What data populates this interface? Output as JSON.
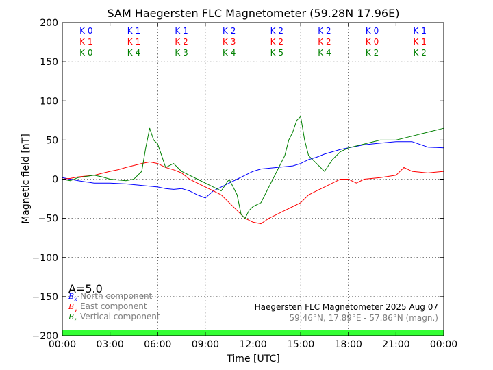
{
  "chart_data": {
    "type": "line",
    "title": "SAM Haegersten FLC Magnetometer (59.28N 17.96E)",
    "xlabel": "Time [UTC]",
    "ylabel": "Magnetic field [nT]",
    "xlim": [
      0,
      24
    ],
    "ylim": [
      -200,
      200
    ],
    "x_ticks": [
      "00:00",
      "03:00",
      "06:00",
      "09:00",
      "12:00",
      "15:00",
      "18:00",
      "21:00",
      "00:00"
    ],
    "y_ticks": [
      "200",
      "150",
      "100",
      "50",
      "0",
      "−50",
      "−100",
      "−150",
      "−200"
    ],
    "grid": true,
    "k_index_rows": [
      {
        "color": "#0000ff",
        "labels": [
          "K 0",
          "K 1",
          "K 1",
          "K 2",
          "K 2",
          "K 2",
          "K 0",
          "K 1"
        ]
      },
      {
        "color": "#ff0000",
        "labels": [
          "K 1",
          "K 1",
          "K 2",
          "K 3",
          "K 2",
          "K 2",
          "K 0",
          "K 1"
        ]
      },
      {
        "color": "#008000",
        "labels": [
          "K 0",
          "K 4",
          "K 3",
          "K 4",
          "K 5",
          "K 4",
          "K 2",
          "K 2"
        ]
      }
    ],
    "a_index": "A=5.0",
    "legend": {
      "placement": "bottom-left",
      "entries": [
        {
          "symbol": "B",
          "sub": "x",
          "label": "North component",
          "color": "#0000ff"
        },
        {
          "symbol": "B",
          "sub": "y",
          "label": "East component",
          "color": "#ff0000"
        },
        {
          "symbol": "B",
          "sub": "z",
          "label": "Vertical component",
          "color": "#008000"
        }
      ]
    },
    "station_label": "Haegersten FLC Magnetometer 2025 Aug 07",
    "coords_label": "59.46°N, 17.89°E - 57.86°N (magn.)",
    "quality_bar_color": "#33ff33",
    "series": [
      {
        "color": "#0000ff",
        "x": [
          0,
          0.5,
          1,
          2,
          3,
          4,
          5,
          6,
          6.5,
          7,
          7.5,
          8,
          8.5,
          9,
          9.5,
          10,
          10.5,
          11,
          11.5,
          12,
          12.5,
          13,
          13.5,
          14,
          14.5,
          15,
          15.5,
          16,
          16.5,
          17,
          17.5,
          18,
          19,
          20,
          21,
          22,
          23,
          24
        ],
        "y": [
          2,
          0,
          -2,
          -5,
          -5,
          -6,
          -8,
          -10,
          -12,
          -13,
          -12,
          -15,
          -20,
          -24,
          -15,
          -10,
          -5,
          0,
          5,
          10,
          13,
          14,
          15,
          16,
          17,
          20,
          25,
          28,
          32,
          35,
          38,
          40,
          44,
          46,
          48,
          48,
          41,
          40
        ]
      },
      {
        "color": "#ff0000",
        "x": [
          0,
          0.5,
          1,
          2,
          3,
          3.5,
          4,
          5,
          5.5,
          6,
          6.5,
          7,
          7.5,
          8,
          8.5,
          9,
          9.5,
          10,
          10.5,
          11,
          11.5,
          12,
          12.5,
          13,
          13.5,
          14,
          14.5,
          15,
          15.5,
          16,
          16.5,
          17,
          17.5,
          18,
          18.5,
          19,
          20,
          21,
          21.5,
          22,
          23,
          24
        ],
        "y": [
          0,
          1,
          3,
          5,
          10,
          12,
          15,
          20,
          22,
          20,
          15,
          12,
          8,
          0,
          -5,
          -10,
          -15,
          -20,
          -30,
          -40,
          -50,
          -55,
          -57,
          -50,
          -45,
          -40,
          -35,
          -30,
          -20,
          -15,
          -10,
          -5,
          0,
          0,
          -5,
          0,
          2,
          5,
          15,
          10,
          8,
          10
        ]
      },
      {
        "color": "#008000",
        "x": [
          0,
          0.5,
          1,
          2,
          2.5,
          3,
          4,
          4.5,
          5,
          5.25,
          5.5,
          5.75,
          6,
          6.25,
          6.5,
          7,
          7.5,
          8,
          8.5,
          9,
          9.5,
          10,
          10.5,
          11,
          11.25,
          11.5,
          11.75,
          12,
          12.5,
          13,
          13.5,
          14,
          14.25,
          14.5,
          14.75,
          15,
          15.25,
          15.5,
          16,
          16.5,
          17,
          17.5,
          18,
          19,
          20,
          21,
          22,
          23,
          24
        ],
        "y": [
          0,
          -2,
          2,
          5,
          3,
          0,
          -2,
          0,
          10,
          40,
          65,
          50,
          45,
          30,
          15,
          20,
          10,
          5,
          0,
          -5,
          -10,
          -15,
          0,
          -20,
          -45,
          -50,
          -40,
          -35,
          -30,
          -10,
          10,
          30,
          50,
          60,
          75,
          80,
          50,
          30,
          20,
          10,
          25,
          35,
          40,
          45,
          50,
          50,
          55,
          60,
          65
        ]
      }
    ]
  }
}
